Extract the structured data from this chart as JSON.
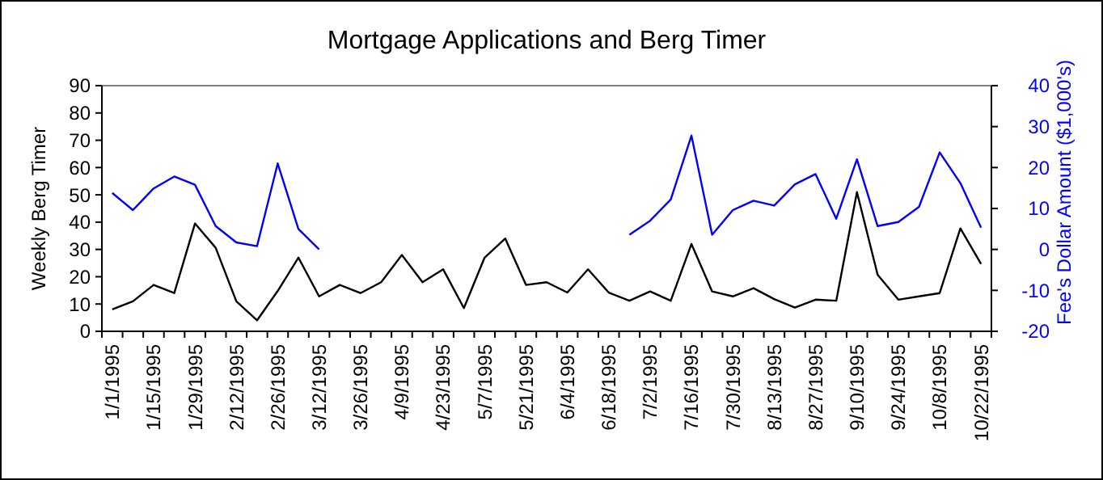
{
  "chart_data": {
    "type": "line",
    "title": "Mortgage Applications and Berg Timer",
    "ylabel": "Weekly Berg Timer",
    "y2label": "Fee's Dollar Amount ($1,000's)",
    "categories": [
      "1/1/1995",
      null,
      "1/15/1995",
      null,
      "1/29/1995",
      null,
      "2/12/1995",
      null,
      "2/26/1995",
      null,
      "3/12/1995",
      null,
      "3/26/1995",
      null,
      "4/9/1995",
      null,
      "4/23/1995",
      null,
      "5/7/1995",
      null,
      "5/21/1995",
      null,
      "6/4/1995",
      null,
      "6/18/1995",
      null,
      "7/2/1995",
      null,
      "7/16/1995",
      null,
      "7/30/1995",
      null,
      "8/13/1995",
      null,
      "8/27/1995",
      null,
      "9/10/1995",
      null,
      "9/24/1995",
      null,
      "10/8/1995",
      null,
      "10/22/1995"
    ],
    "series": [
      {
        "color": "#000000",
        "values": [
          8,
          11,
          17,
          14,
          39.5,
          30.6,
          11,
          4,
          14.8,
          27,
          12.8,
          17,
          14,
          18,
          28,
          18,
          22.7,
          8.5,
          27,
          34,
          17,
          18,
          14.2,
          22.7,
          14.2,
          11.2,
          14.6,
          11.2,
          32,
          14.6,
          12.8,
          15.8,
          11.8,
          8.7,
          11.6,
          11.2,
          51,
          20.7,
          11.6,
          12.8,
          14,
          37.7,
          24.7
        ]
      },
      {
        "color": "#0000ff",
        "axis": "y2",
        "values": [
          13.8,
          9.6,
          14.9,
          17.8,
          15.8,
          5.7,
          1.7,
          0.8,
          21,
          5,
          0,
          null,
          null,
          null,
          null,
          null,
          null,
          null,
          null,
          null,
          null,
          null,
          null,
          null,
          null,
          3.6,
          7,
          12.2,
          27.8,
          3.6,
          9.6,
          11.9,
          10.7,
          15.9,
          18.4,
          7.5,
          22,
          5.7,
          6.7,
          10.4,
          23.7,
          16.2,
          5.3
        ]
      }
    ],
    "ylim": [
      0,
      90
    ],
    "yticks": [
      0,
      10,
      20,
      30,
      40,
      50,
      60,
      70,
      80,
      90
    ],
    "y2lim": [
      -20,
      40
    ],
    "y2ticks": [
      -20,
      -10,
      0,
      10,
      20,
      30,
      40
    ],
    "line_style": "solid"
  }
}
